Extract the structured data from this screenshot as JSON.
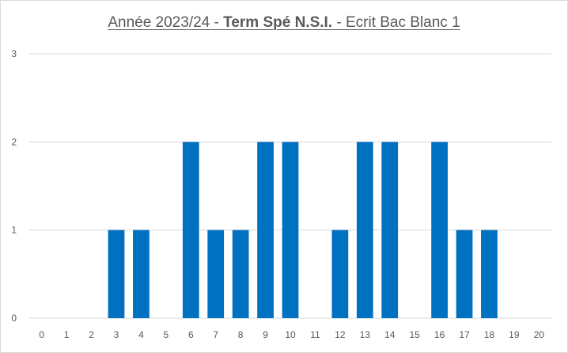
{
  "chart_data": {
    "type": "bar",
    "title_parts": {
      "prefix": "Année 2023/24 - ",
      "bold": "Term Spé N.S.I.",
      "suffix": " - Ecrit Bac Blanc 1"
    },
    "categories": [
      "0",
      "1",
      "2",
      "3",
      "4",
      "5",
      "6",
      "7",
      "8",
      "9",
      "10",
      "11",
      "12",
      "13",
      "14",
      "15",
      "16",
      "17",
      "18",
      "19",
      "20"
    ],
    "values": [
      0,
      0,
      0,
      1,
      1,
      0,
      2,
      1,
      1,
      2,
      2,
      0,
      1,
      2,
      2,
      0,
      2,
      1,
      1,
      0,
      0
    ],
    "ylim": [
      0,
      3
    ],
    "yticks": [
      "0",
      "1",
      "2",
      "3"
    ],
    "grid": true,
    "bar_color": "#0070C0",
    "grid_color": "#d9d9d9",
    "xlabel": "",
    "ylabel": ""
  }
}
